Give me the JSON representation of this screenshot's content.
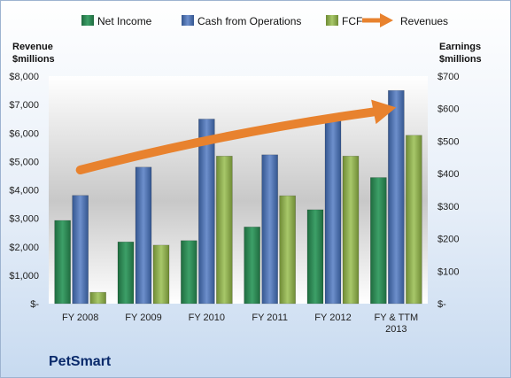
{
  "company": "PetSmart",
  "colors": {
    "net_income": "#2e8b57",
    "cash_ops": "#4a6fb5",
    "fcf": "#8fb04e",
    "revenues": "#e8822e",
    "company_text": "#0a2a6b"
  },
  "chart_data": {
    "type": "bar",
    "categories": [
      "FY 2008",
      "FY 2009",
      "FY 2010",
      "FY 2011",
      "FY 2012",
      "FY & TTM 2013"
    ],
    "left_axis": {
      "title_line1": "Revenue",
      "title_line2": "$millions",
      "ylim": [
        0,
        8000
      ],
      "ticks": [
        "$-",
        "$1,000",
        "$2,000",
        "$3,000",
        "$4,000",
        "$5,000",
        "$6,000",
        "$7,000",
        "$8,000"
      ]
    },
    "right_axis": {
      "title_line1": "Earnings",
      "title_line2": "$millions",
      "ylim": [
        0,
        700
      ],
      "ticks": [
        "$-",
        "$100",
        "$200",
        "$300",
        "$400",
        "$500",
        "$600",
        "$700"
      ]
    },
    "series": [
      {
        "name": "Net Income",
        "axis": "right",
        "kind": "bar",
        "values": [
          256,
          190,
          194,
          236,
          289,
          388
        ]
      },
      {
        "name": "Cash from Operations",
        "axis": "right",
        "kind": "bar",
        "values": [
          333,
          420,
          568,
          458,
          575,
          656
        ]
      },
      {
        "name": "FCF",
        "axis": "right",
        "kind": "bar",
        "values": [
          35,
          180,
          454,
          332,
          454,
          518
        ]
      }
    ],
    "revenues_arrow": {
      "name": "Revenues",
      "axis": "left",
      "kind": "arrow",
      "values": [
        4700,
        5100,
        5400,
        5800,
        6200,
        6900
      ]
    },
    "grid": false,
    "legend": "top"
  }
}
